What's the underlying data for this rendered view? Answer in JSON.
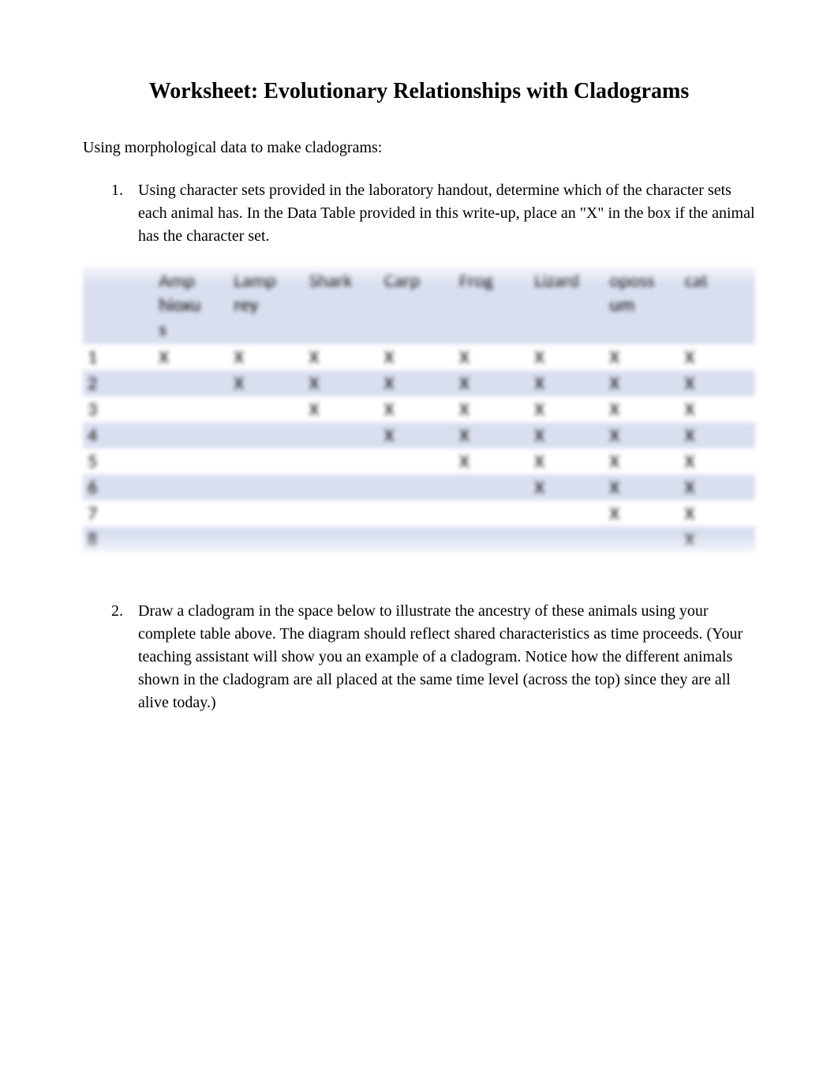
{
  "title": "Worksheet: Evolutionary Relationships with Cladograms",
  "intro": "Using morphological data to make cladograms:",
  "items": [
    "Using character sets provided in the laboratory handout, determine which of the character sets each animal has. In the Data Table provided in this write-up, place an \"X\" in the box if the animal has the character set.",
    "Draw a cladogram in the space below to illustrate the ancestry of these animals using your complete table above. The diagram should reflect shared characteristics as time proceeds. (Your teaching assistant will show you an example of a cladogram. Notice how the different animals shown in the cladogram are all placed at the same time level (across the top) since they are all alive today.)"
  ],
  "table": {
    "columns_line1": [
      "",
      "Amp",
      "Lamp",
      "Shark",
      "Carp",
      "Frog",
      "Lizard",
      "oposs",
      "cat"
    ],
    "columns_line2": [
      "",
      "hioxu",
      "rey",
      "",
      "",
      "",
      "",
      "um",
      ""
    ],
    "columns_line3": [
      "",
      "s",
      "",
      "",
      "",
      "",
      "",
      "",
      ""
    ],
    "row_labels": [
      "1",
      "2",
      "3",
      "4",
      "5",
      "6",
      "7",
      "8"
    ],
    "rows": [
      [
        "X",
        "X",
        "X",
        "X",
        "X",
        "X",
        "X",
        "X"
      ],
      [
        "",
        "X",
        "X",
        "X",
        "X",
        "X",
        "X",
        "X"
      ],
      [
        "",
        "",
        "X",
        "X",
        "X",
        "X",
        "X",
        "X"
      ],
      [
        "",
        "",
        "",
        "X",
        "X",
        "X",
        "X",
        "X"
      ],
      [
        "",
        "",
        "",
        "",
        "X",
        "X",
        "X",
        "X"
      ],
      [
        "",
        "",
        "",
        "",
        "",
        "X",
        "X",
        "X"
      ],
      [
        "",
        "",
        "",
        "",
        "",
        "",
        "X",
        "X"
      ],
      [
        "",
        "",
        "",
        "",
        "",
        "",
        "",
        "X"
      ]
    ],
    "header_bg": "#d9dfef",
    "band_bg": "#d9dfef",
    "text_color": "#000000",
    "font_family": "Calibri",
    "cell_fontsize": 24
  }
}
